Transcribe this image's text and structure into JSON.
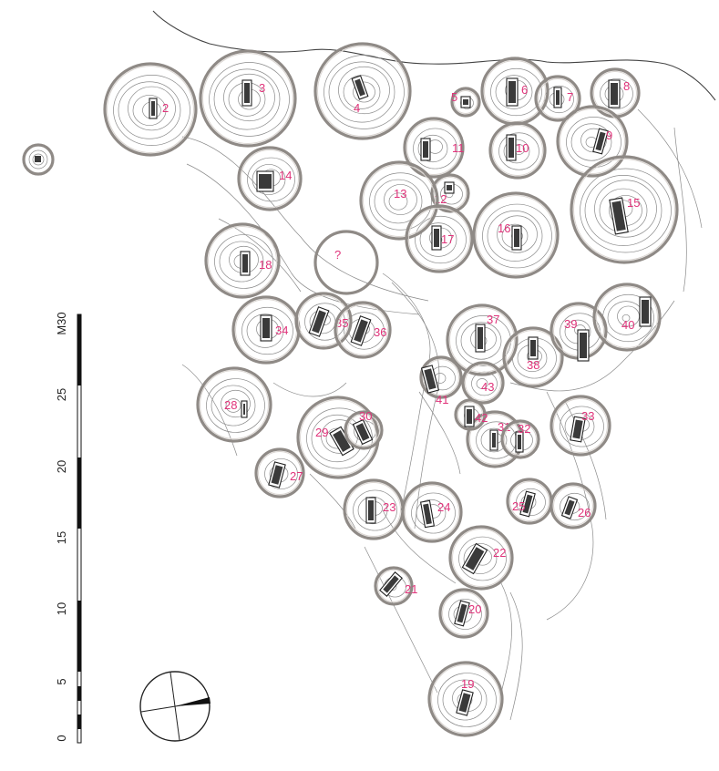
{
  "map": {
    "mound_labels": [
      "2",
      "3",
      "4",
      "5",
      "6",
      "7",
      "8",
      "9",
      "10",
      "11",
      "12",
      "13",
      "14",
      "15",
      "16",
      "17",
      "18",
      "19",
      "20",
      "21",
      "22",
      "23",
      "24",
      "25",
      "26",
      "27",
      "28",
      "29",
      "30",
      "31",
      "32",
      "33",
      "34",
      "35",
      "36",
      "37",
      "38",
      "39",
      "40",
      "41",
      "42",
      "43"
    ],
    "unknown_marker": "?"
  },
  "scale": {
    "ticks": [
      "0",
      "5",
      "10",
      "15",
      "20",
      "25",
      "M30"
    ]
  },
  "north_arrow": {
    "icon": "north-arrow-icon"
  }
}
